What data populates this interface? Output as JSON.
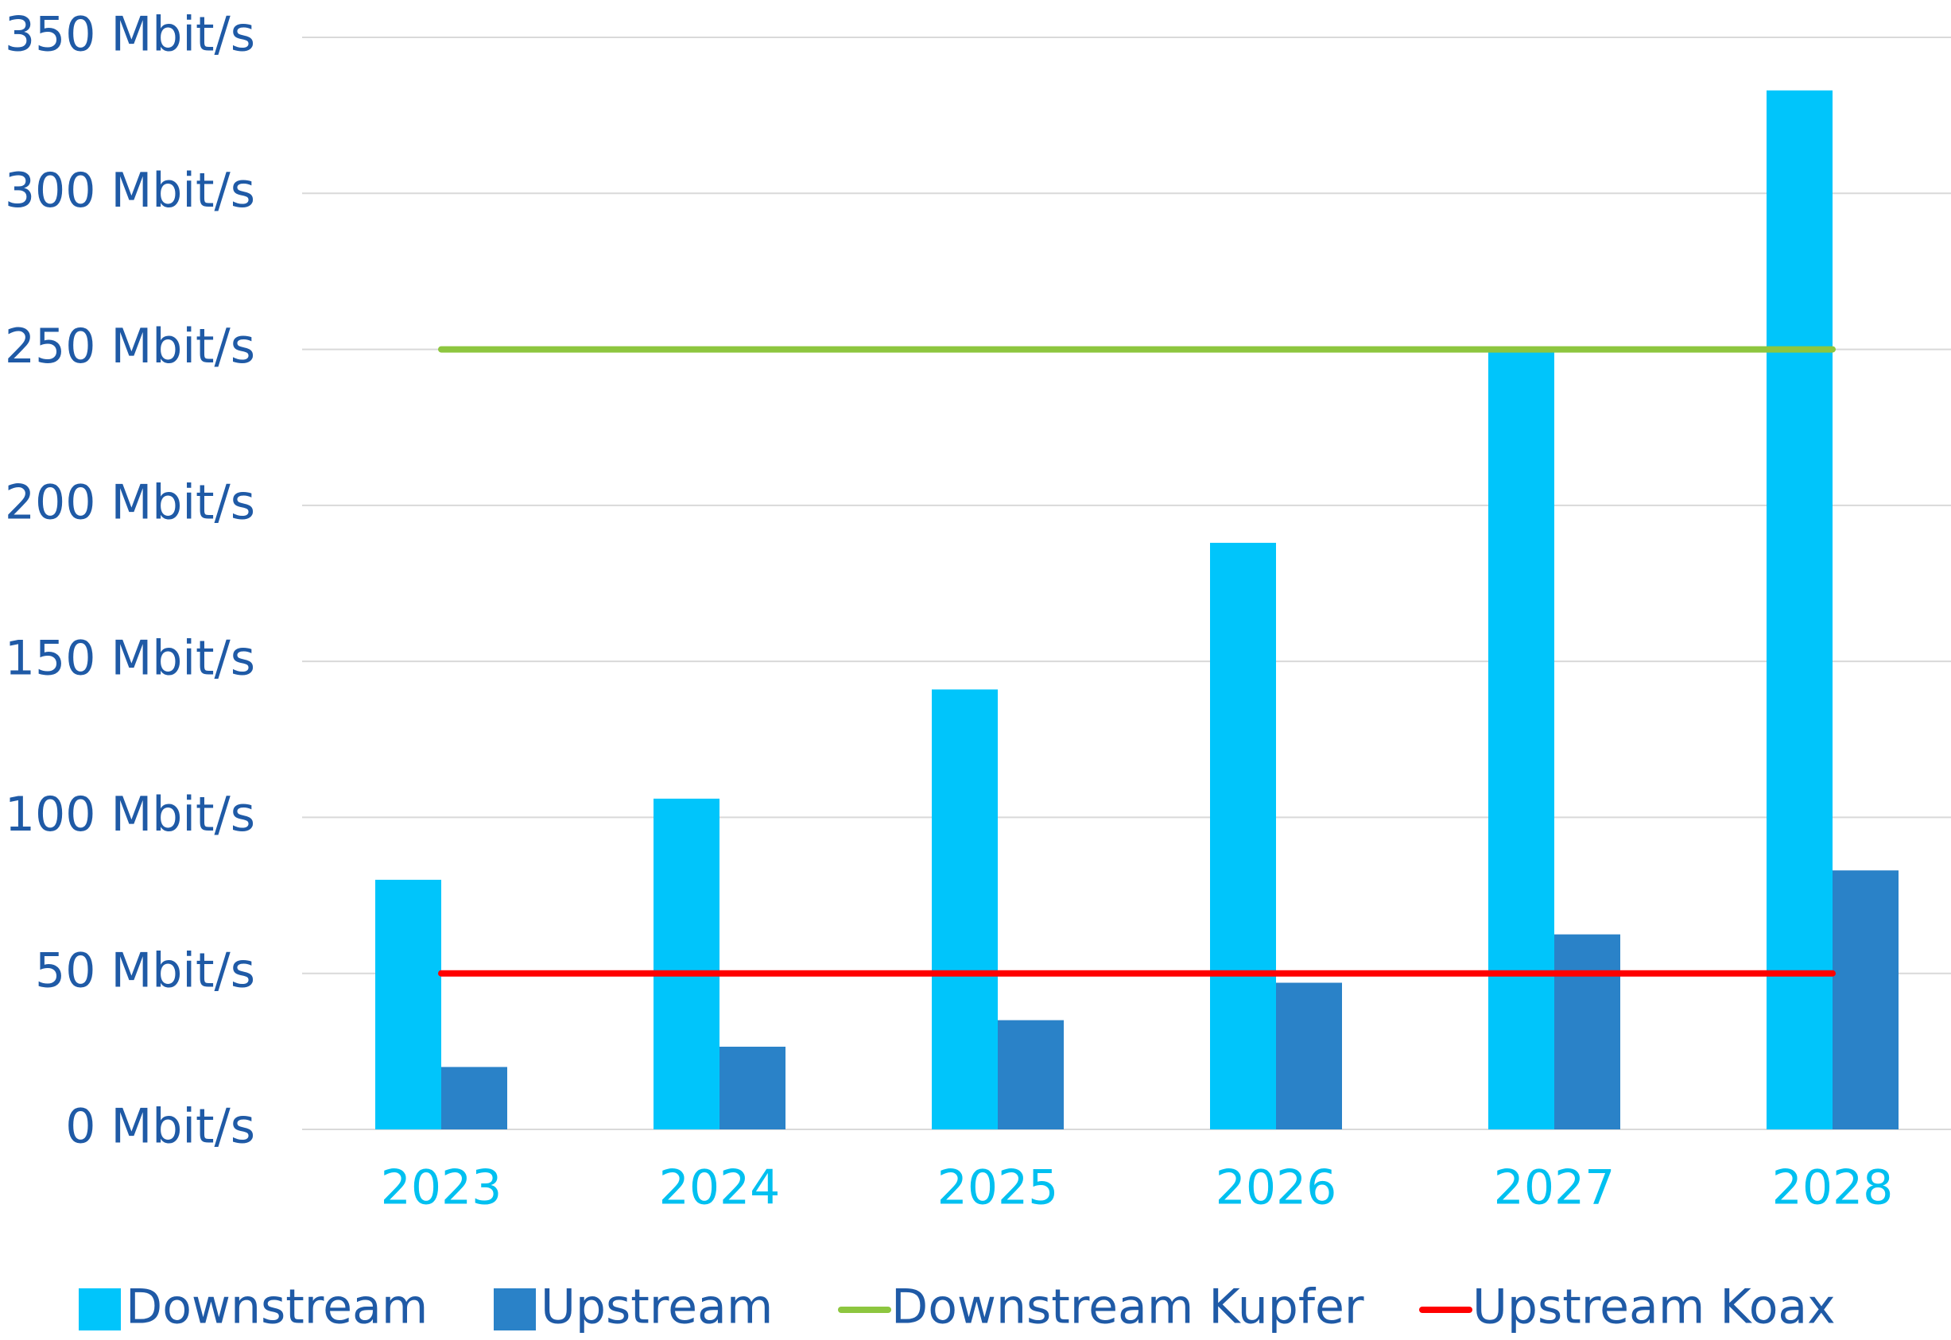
{
  "chart_data": {
    "type": "bar",
    "categories": [
      "2023",
      "2024",
      "2025",
      "2026",
      "2027",
      "2028"
    ],
    "series": [
      {
        "name": "Downstream",
        "type": "bar",
        "color": "#00c5fb",
        "values": [
          80,
          106,
          141,
          188,
          250,
          333
        ]
      },
      {
        "name": "Upstream",
        "type": "bar",
        "color": "#2a82c8",
        "values": [
          20,
          26.5,
          35,
          47,
          62.5,
          83
        ]
      },
      {
        "name": "Downstream Kupfer",
        "type": "line",
        "color": "#8dc63f",
        "values": [
          250,
          250,
          250,
          250,
          250,
          250
        ]
      },
      {
        "name": "Upstream Koax",
        "type": "line",
        "color": "#ff0000",
        "values": [
          50,
          50,
          50,
          50,
          50,
          50
        ]
      }
    ],
    "ylim": [
      0,
      350
    ],
    "yticks": [
      {
        "value": 0,
        "label": "0 Mbit/s"
      },
      {
        "value": 50,
        "label": "50 Mbit/s"
      },
      {
        "value": 100,
        "label": "100 Mbit/s"
      },
      {
        "value": 150,
        "label": "150 Mbit/s"
      },
      {
        "value": 200,
        "label": "200 Mbit/s"
      },
      {
        "value": 250,
        "label": "250 Mbit/s"
      },
      {
        "value": 300,
        "label": "300 Mbit/s"
      },
      {
        "value": 350,
        "label": "350 Mbit/s"
      }
    ],
    "grid": true,
    "legend": "bottom"
  }
}
